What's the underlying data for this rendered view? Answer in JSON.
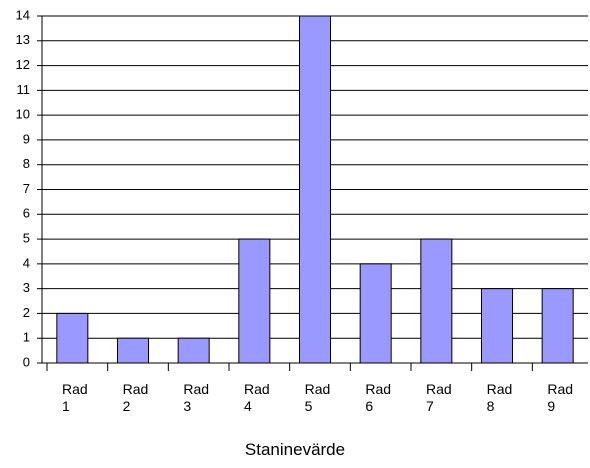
{
  "chart_data": {
    "type": "bar",
    "x_label": "Staninevärde",
    "categories": [
      "Rad 1",
      "Rad 2",
      "Rad 3",
      "Rad 4",
      "Rad 5",
      "Rad 6",
      "Rad 7",
      "Rad 8",
      "Rad 9"
    ],
    "values": [
      2,
      1,
      1,
      5,
      14,
      4,
      5,
      3,
      3
    ],
    "color": "#9999ff",
    "ylim": [
      0,
      14
    ],
    "yticks": [
      0,
      1,
      2,
      3,
      4,
      5,
      6,
      7,
      8,
      9,
      10,
      11,
      12,
      13,
      14
    ],
    "grid": true
  }
}
